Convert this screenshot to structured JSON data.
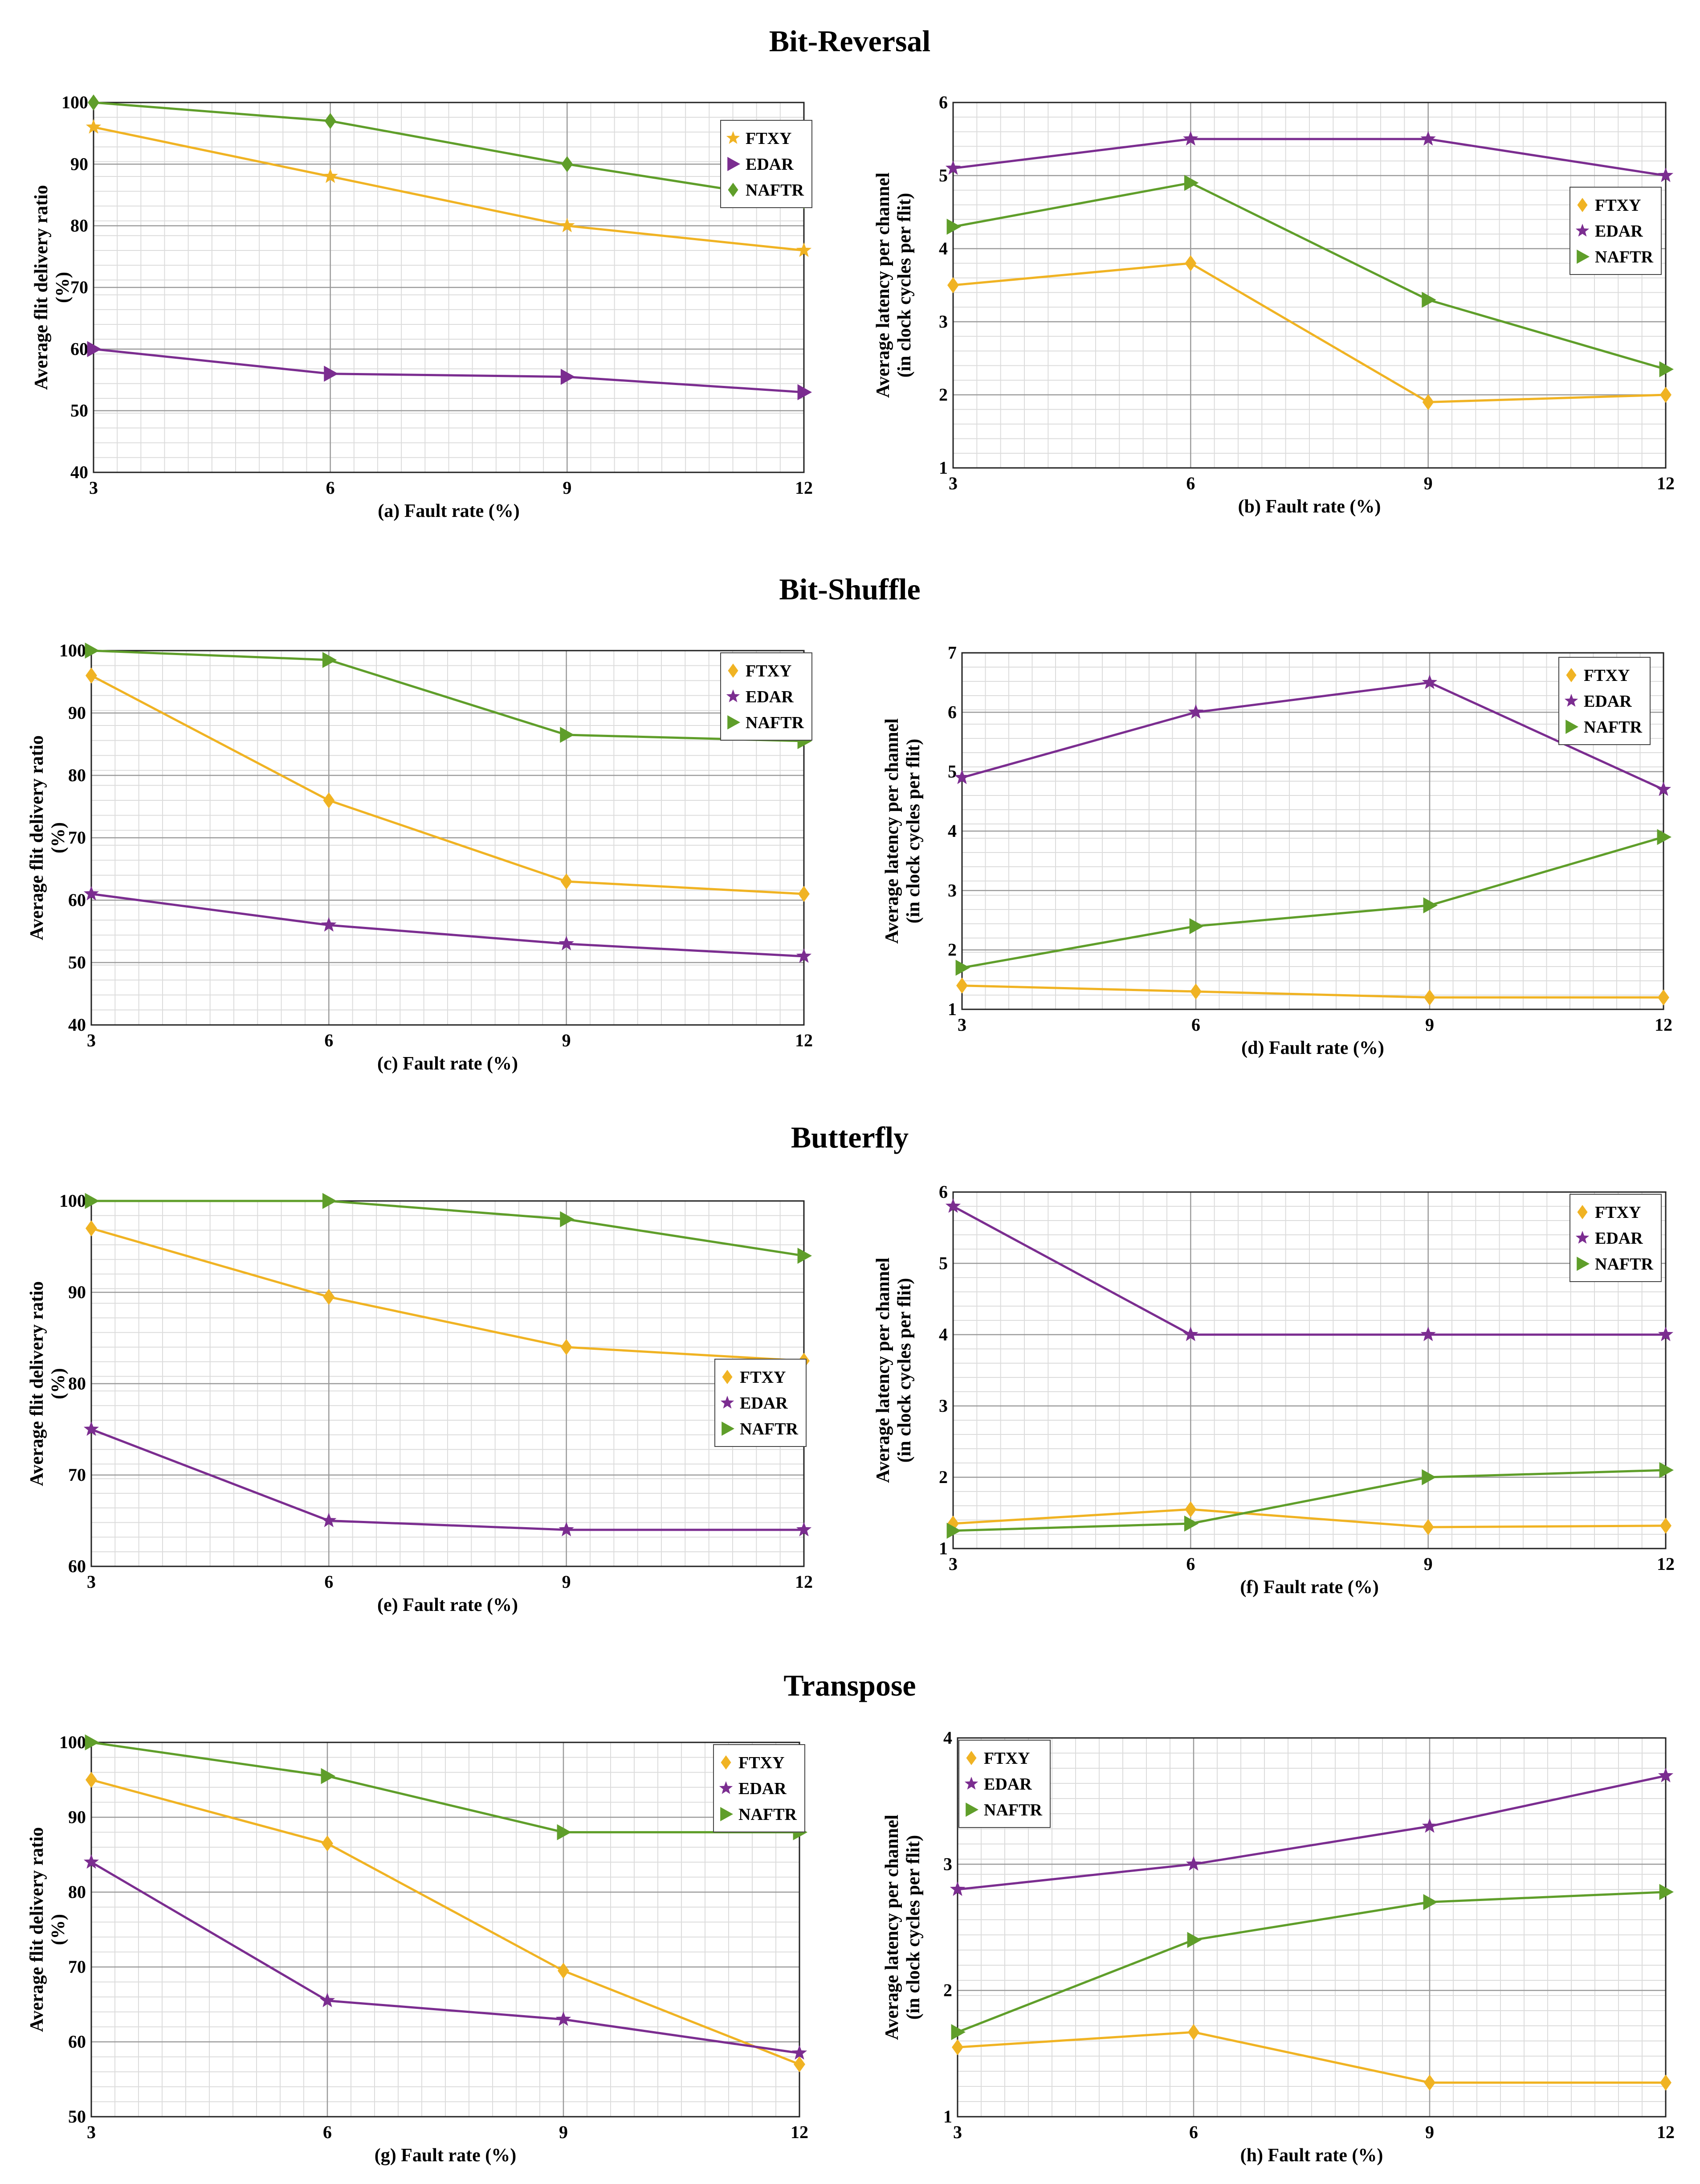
{
  "section_titles": [
    "Bit-Reversal",
    "Bit-Shuffle",
    "Butterfly",
    "Transpose"
  ],
  "colors": {
    "FTXY": "#f0b323",
    "EDAR": "#7b2d90",
    "NAFTR": "#5f9e2a"
  },
  "chart_data": [
    {
      "type": "line",
      "xlabel": "(a) Fault rate (%)",
      "ylabel": "Average flit delivery ratio (%)",
      "x": [
        3,
        6,
        9,
        12
      ],
      "ylim": [
        40,
        100
      ],
      "yticks": [
        40,
        50,
        60,
        70,
        80,
        90,
        100
      ],
      "legend_position": "top-right",
      "series": [
        {
          "name": "FTXY",
          "marker": "star",
          "values": [
            96,
            88,
            80,
            76
          ]
        },
        {
          "name": "EDAR",
          "marker": "triangle",
          "values": [
            60,
            56,
            55.5,
            53
          ]
        },
        {
          "name": "NAFTR",
          "marker": "diamond",
          "values": [
            100,
            97,
            90,
            84
          ]
        }
      ]
    },
    {
      "type": "line",
      "xlabel": "(b) Fault rate (%)",
      "ylabel": "Average latency per channel (in clock cycles per flit)",
      "x": [
        3,
        6,
        9,
        12
      ],
      "ylim": [
        1,
        6
      ],
      "yticks": [
        1,
        2,
        3,
        4,
        5,
        6
      ],
      "legend_position": "right",
      "series": [
        {
          "name": "FTXY",
          "marker": "diamond",
          "values": [
            3.5,
            3.8,
            1.9,
            2.0
          ]
        },
        {
          "name": "EDAR",
          "marker": "star",
          "values": [
            5.1,
            5.5,
            5.5,
            5.0
          ]
        },
        {
          "name": "NAFTR",
          "marker": "triangle",
          "values": [
            4.3,
            4.9,
            3.3,
            2.35
          ]
        }
      ]
    },
    {
      "type": "line",
      "xlabel": "(c) Fault rate (%)",
      "ylabel": "Average flit delivery ratio (%)",
      "x": [
        3,
        6,
        9,
        12
      ],
      "ylim": [
        40,
        100
      ],
      "yticks": [
        40,
        50,
        60,
        70,
        80,
        90,
        100
      ],
      "legend_position": "top-right",
      "series": [
        {
          "name": "FTXY",
          "marker": "diamond",
          "values": [
            96,
            76,
            63,
            61
          ]
        },
        {
          "name": "EDAR",
          "marker": "star",
          "values": [
            61,
            56,
            53,
            51
          ]
        },
        {
          "name": "NAFTR",
          "marker": "triangle",
          "values": [
            100,
            98.5,
            86.5,
            85.5
          ]
        }
      ]
    },
    {
      "type": "line",
      "xlabel": "(d) Fault rate (%)",
      "ylabel": "Average latency per channel (in clock cycles per flit)",
      "x": [
        3,
        6,
        9,
        12
      ],
      "ylim": [
        1,
        7
      ],
      "yticks": [
        1,
        2,
        3,
        4,
        5,
        6,
        7
      ],
      "legend_position": "top-right",
      "series": [
        {
          "name": "FTXY",
          "marker": "diamond",
          "values": [
            1.4,
            1.3,
            1.2,
            1.2
          ]
        },
        {
          "name": "EDAR",
          "marker": "star",
          "values": [
            4.9,
            6.0,
            6.5,
            4.7
          ]
        },
        {
          "name": "NAFTR",
          "marker": "triangle",
          "values": [
            1.7,
            2.4,
            2.75,
            3.9
          ]
        }
      ]
    },
    {
      "type": "line",
      "xlabel": "(e) Fault rate (%)",
      "ylabel": "Average flit delivery ratio (%)",
      "x": [
        3,
        6,
        9,
        12
      ],
      "ylim": [
        60,
        100
      ],
      "yticks": [
        60,
        70,
        80,
        90,
        100
      ],
      "legend_position": "middle-right",
      "series": [
        {
          "name": "FTXY",
          "marker": "diamond",
          "values": [
            97,
            89.5,
            84,
            82.5
          ]
        },
        {
          "name": "EDAR",
          "marker": "star",
          "values": [
            75,
            65,
            64,
            64
          ]
        },
        {
          "name": "NAFTR",
          "marker": "triangle",
          "values": [
            100,
            100,
            98,
            94
          ]
        }
      ]
    },
    {
      "type": "line",
      "xlabel": "(f) Fault rate (%)",
      "ylabel": "Average latency per channel (in clock cycles per flit)",
      "x": [
        3,
        6,
        9,
        12
      ],
      "ylim": [
        1,
        6
      ],
      "yticks": [
        1,
        2,
        3,
        4,
        5,
        6
      ],
      "legend_position": "top-right",
      "series": [
        {
          "name": "FTXY",
          "marker": "diamond",
          "values": [
            1.35,
            1.55,
            1.3,
            1.32
          ]
        },
        {
          "name": "EDAR",
          "marker": "star",
          "values": [
            5.8,
            4.0,
            4.0,
            4.0
          ]
        },
        {
          "name": "NAFTR",
          "marker": "triangle",
          "values": [
            1.25,
            1.35,
            2.0,
            2.1
          ]
        }
      ]
    },
    {
      "type": "line",
      "xlabel": "(g) Fault rate (%)",
      "ylabel": "Average flit delivery ratio (%)",
      "x": [
        3,
        6,
        9,
        12
      ],
      "ylim": [
        50,
        100
      ],
      "yticks": [
        50,
        60,
        70,
        80,
        90,
        100
      ],
      "legend_position": "top-right",
      "series": [
        {
          "name": "FTXY",
          "marker": "diamond",
          "values": [
            95,
            86.5,
            69.5,
            57
          ]
        },
        {
          "name": "EDAR",
          "marker": "star",
          "values": [
            84,
            65.5,
            63,
            58.5
          ]
        },
        {
          "name": "NAFTR",
          "marker": "triangle",
          "values": [
            100,
            95.5,
            88,
            88
          ]
        }
      ]
    },
    {
      "type": "line",
      "xlabel": "(h) Fault rate (%)",
      "ylabel": "Average latency per channel (in clock cycles per flit)",
      "x": [
        3,
        6,
        9,
        12
      ],
      "ylim": [
        1,
        4
      ],
      "yticks": [
        1,
        2,
        3,
        4
      ],
      "legend_position": "top-left",
      "series": [
        {
          "name": "FTXY",
          "marker": "diamond",
          "values": [
            1.55,
            1.67,
            1.27,
            1.27
          ]
        },
        {
          "name": "EDAR",
          "marker": "star",
          "values": [
            2.8,
            3.0,
            3.3,
            3.7
          ]
        },
        {
          "name": "NAFTR",
          "marker": "triangle",
          "values": [
            1.67,
            2.4,
            2.7,
            2.78
          ]
        }
      ]
    }
  ]
}
